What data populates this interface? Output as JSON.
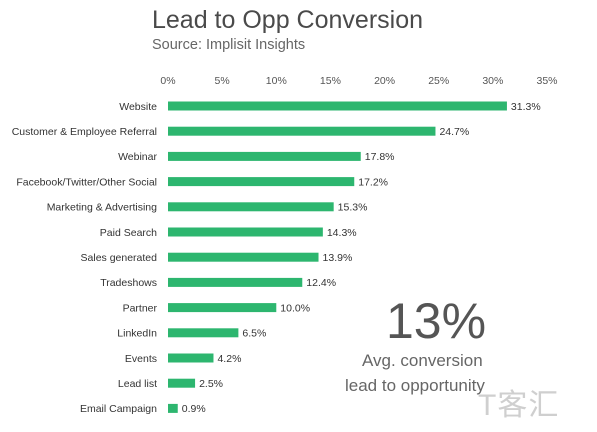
{
  "chart_data": {
    "type": "bar",
    "orientation": "horizontal",
    "title": "Lead to Opp Conversion",
    "subtitle": "Source: Implisit Insights",
    "categories": [
      "Website",
      "Customer & Employee Referral",
      "Webinar",
      "Facebook/Twitter/Other Social",
      "Marketing & Advertising",
      "Paid Search",
      "Sales generated",
      "Tradeshows",
      "Partner",
      "LinkedIn",
      "Events",
      "Lead list",
      "Email Campaign"
    ],
    "values": [
      31.3,
      24.7,
      17.8,
      17.2,
      15.3,
      14.3,
      13.9,
      12.4,
      10.0,
      6.5,
      4.2,
      2.5,
      0.9
    ],
    "value_labels": [
      "31.3%",
      "24.7%",
      "17.8%",
      "17.2%",
      "15.3%",
      "14.3%",
      "13.9%",
      "12.4%",
      "10.0%",
      "6.5%",
      "4.2%",
      "2.5%",
      "0.9%"
    ],
    "xticks": [
      0,
      5,
      10,
      15,
      20,
      25,
      30,
      35
    ],
    "xtick_labels": [
      "0%",
      "5%",
      "10%",
      "15%",
      "20%",
      "25%",
      "30%",
      "35%"
    ],
    "xlim": [
      0,
      35
    ],
    "axis_position": "top",
    "grid": false,
    "bar_color": "#2db66f"
  },
  "callout": {
    "value": "13%",
    "line1": "Avg. conversion",
    "line2": "lead to opportunity"
  },
  "watermark": "T客汇"
}
